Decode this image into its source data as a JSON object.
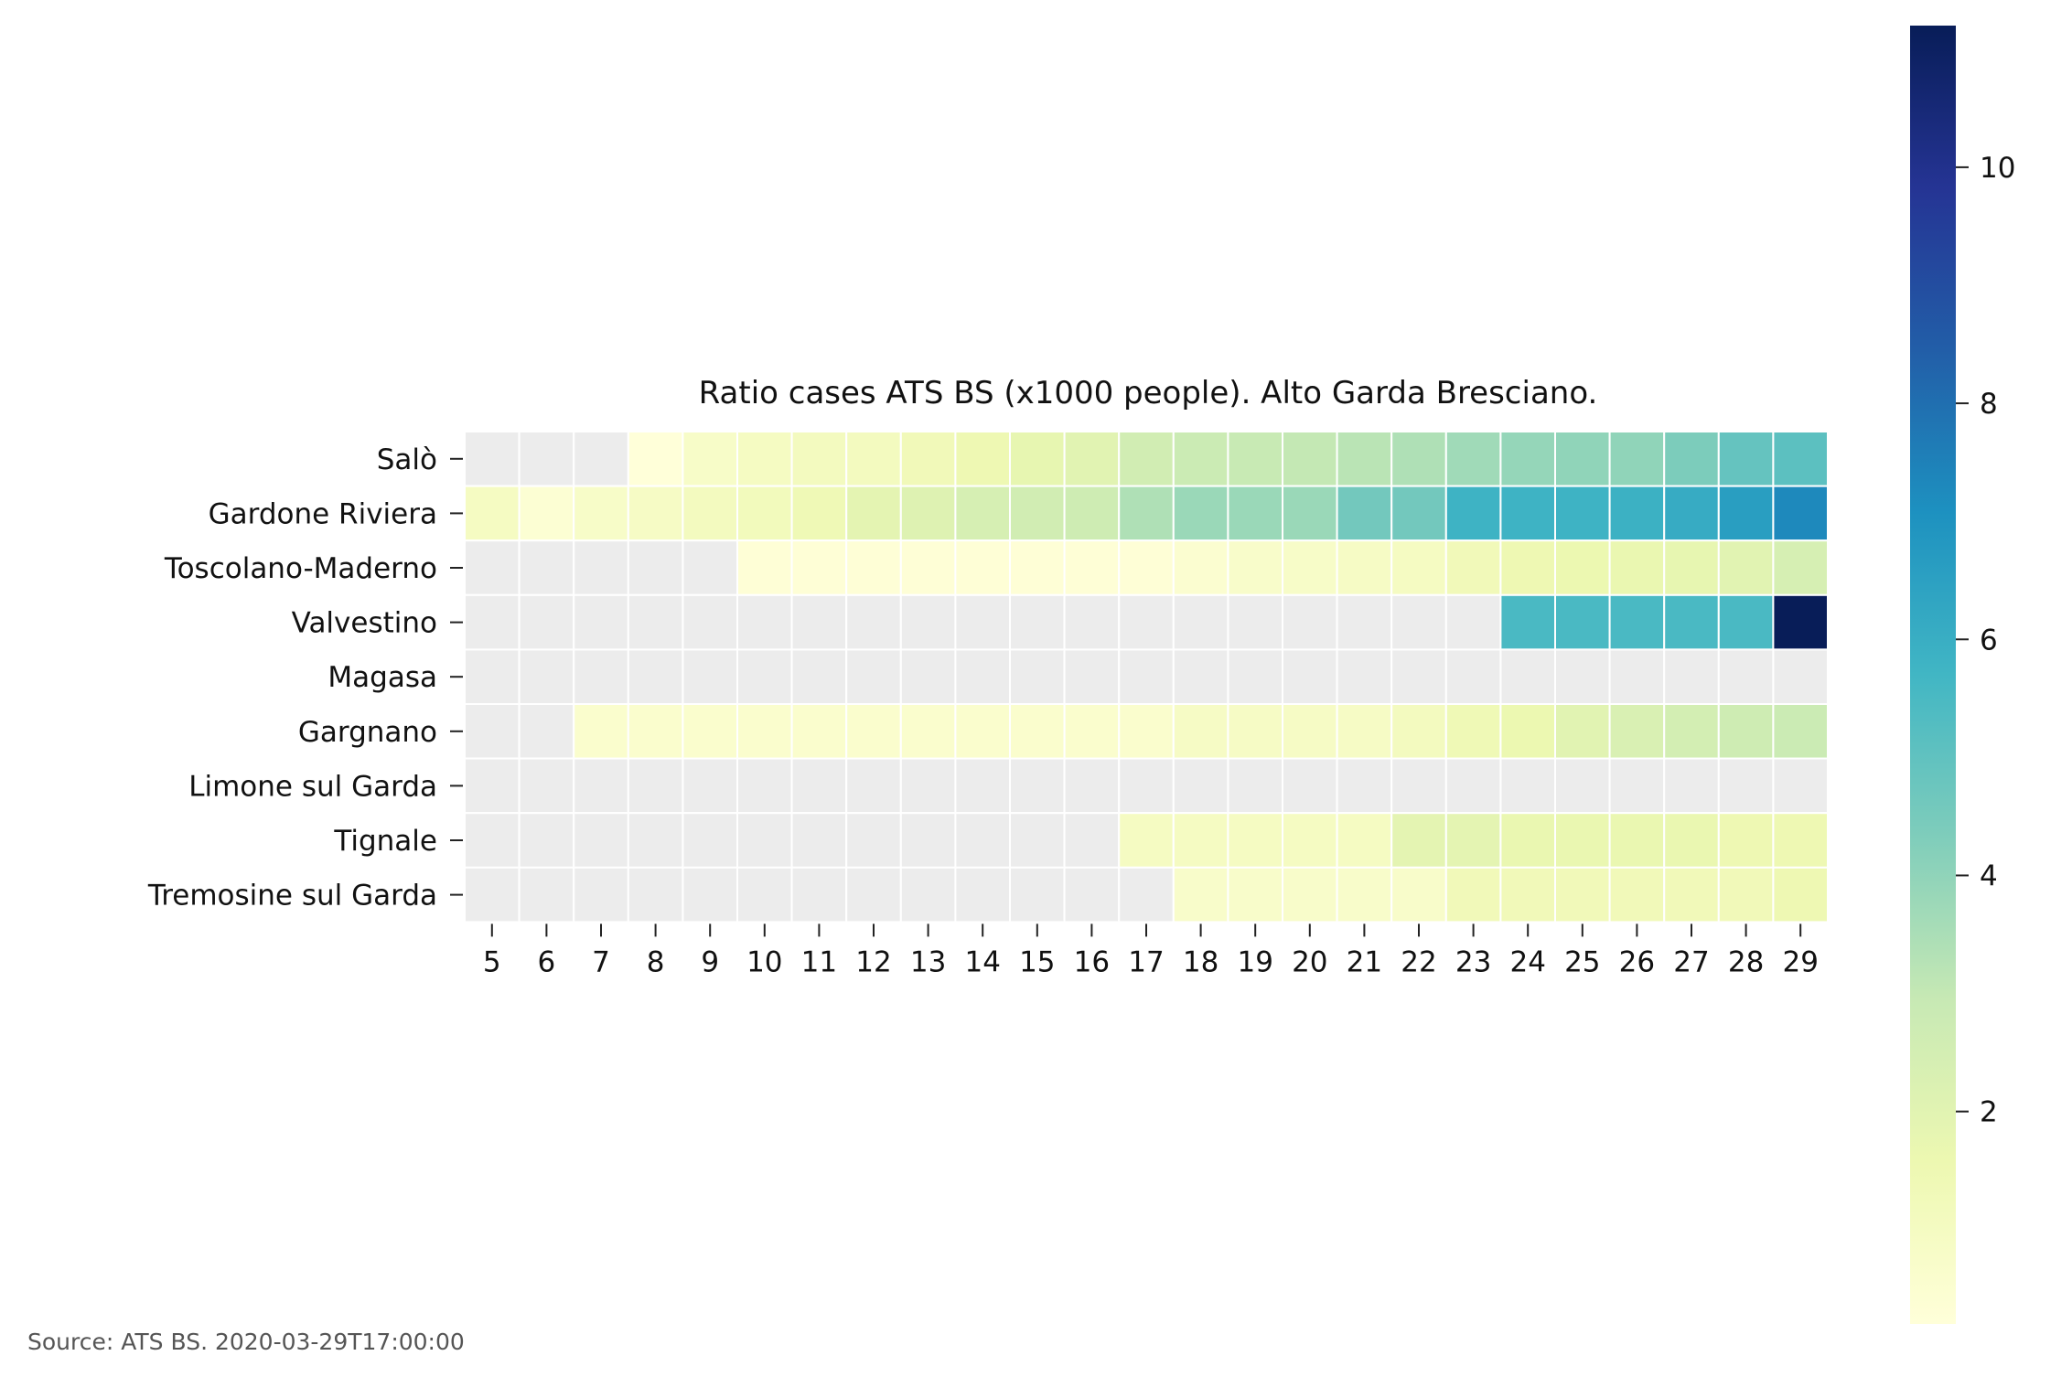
{
  "chart_data": {
    "type": "heatmap",
    "title": "Ratio cases ATS BS (x1000 people). Alto Garda Bresciano.",
    "xlabel": "",
    "ylabel": "",
    "x_categories": [
      "5",
      "6",
      "7",
      "8",
      "9",
      "10",
      "11",
      "12",
      "13",
      "14",
      "15",
      "16",
      "17",
      "18",
      "19",
      "20",
      "21",
      "22",
      "23",
      "24",
      "25",
      "26",
      "27",
      "28",
      "29"
    ],
    "y_categories": [
      "Salò",
      "Gardone Riviera",
      "Toscolano-Maderno",
      "Valvestino",
      "Magasa",
      "Gargnano",
      "Limone sul Garda",
      "Tignale",
      "Tremosine sul Garda"
    ],
    "values": [
      [
        null,
        null,
        null,
        0.2,
        0.8,
        1.0,
        1.1,
        1.1,
        1.3,
        1.5,
        1.8,
        2.0,
        2.6,
        2.8,
        2.9,
        3.0,
        3.2,
        3.4,
        3.7,
        3.9,
        4.0,
        4.0,
        4.4,
        4.9,
        5.1
      ],
      [
        1.0,
        0.4,
        0.8,
        0.9,
        1.1,
        1.2,
        1.4,
        1.9,
        2.1,
        2.4,
        2.6,
        2.7,
        3.4,
        3.8,
        3.8,
        3.8,
        4.6,
        4.6,
        5.8,
        5.8,
        5.8,
        5.9,
        6.1,
        6.6,
        7.3
      ],
      [
        null,
        null,
        null,
        null,
        null,
        0.3,
        0.3,
        0.3,
        0.3,
        0.3,
        0.3,
        0.3,
        0.3,
        0.5,
        0.7,
        0.8,
        0.9,
        1.0,
        1.3,
        1.5,
        1.6,
        1.7,
        1.8,
        2.0,
        2.4
      ],
      [
        null,
        null,
        null,
        null,
        null,
        null,
        null,
        null,
        null,
        null,
        null,
        null,
        null,
        null,
        null,
        null,
        null,
        null,
        null,
        5.5,
        5.5,
        5.5,
        5.5,
        5.5,
        11.2
      ],
      [
        null,
        null,
        null,
        null,
        null,
        null,
        null,
        null,
        null,
        null,
        null,
        null,
        null,
        null,
        null,
        null,
        null,
        null,
        null,
        null,
        null,
        null,
        null,
        null,
        null
      ],
      [
        null,
        null,
        0.6,
        0.6,
        0.6,
        0.6,
        0.6,
        0.6,
        0.6,
        0.6,
        0.6,
        0.6,
        0.6,
        0.9,
        0.9,
        0.9,
        0.9,
        1.1,
        1.4,
        1.6,
        2.0,
        2.3,
        2.5,
        2.7,
        2.8
      ],
      [
        null,
        null,
        null,
        null,
        null,
        null,
        null,
        null,
        null,
        null,
        null,
        null,
        null,
        null,
        null,
        null,
        null,
        null,
        null,
        null,
        null,
        null,
        null,
        null,
        null
      ],
      [
        null,
        null,
        null,
        null,
        null,
        null,
        null,
        null,
        null,
        null,
        null,
        null,
        1.0,
        1.0,
        1.0,
        1.0,
        1.0,
        1.9,
        1.9,
        1.7,
        1.7,
        1.7,
        1.7,
        1.5,
        1.5
      ],
      [
        null,
        null,
        null,
        null,
        null,
        null,
        null,
        null,
        null,
        null,
        null,
        null,
        null,
        0.7,
        0.7,
        0.7,
        0.7,
        0.7,
        1.3,
        1.3,
        1.3,
        1.3,
        1.3,
        1.3,
        1.5
      ]
    ],
    "missing_color": "#ececec",
    "colormap": "YlGnBu",
    "colorbar": {
      "ticks": [
        "2",
        "4",
        "6",
        "8",
        "10"
      ],
      "range": [
        0.2,
        11.2
      ]
    }
  },
  "source_text": "Source: ATS BS. 2020-03-29T17:00:00"
}
